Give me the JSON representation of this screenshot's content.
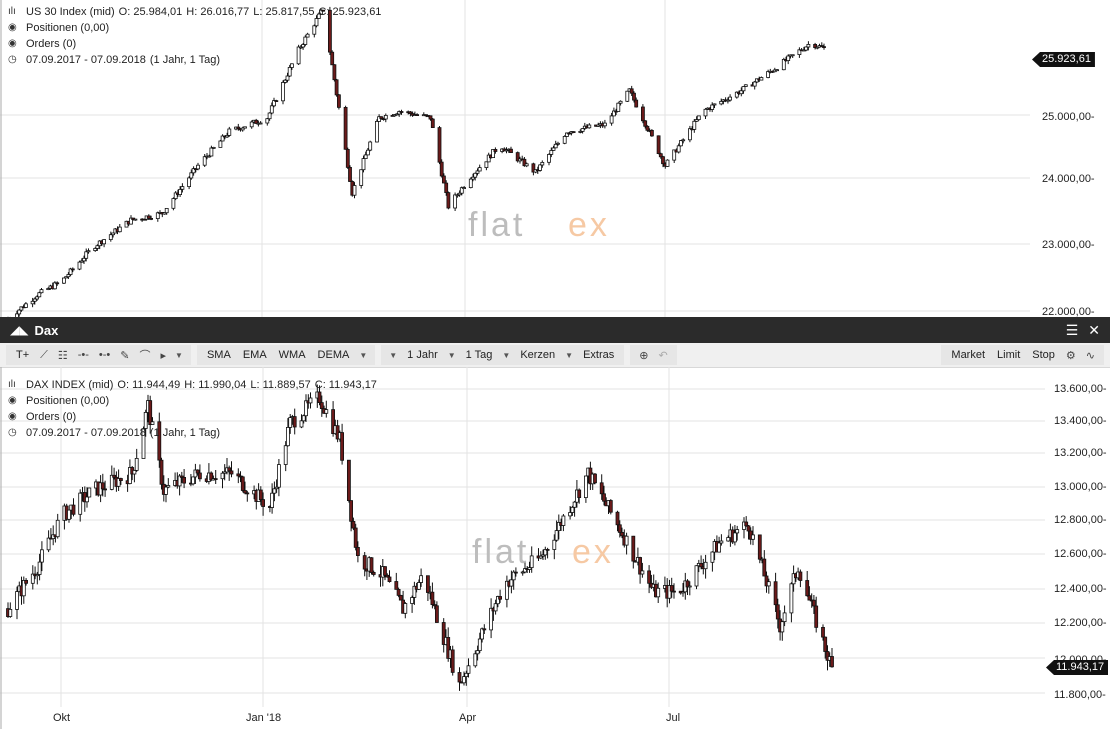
{
  "top_panel": {
    "header": {
      "name": "US 30 Index (mid)",
      "open": "O: 25.984,01",
      "high": "H: 26.016,77",
      "low": "L: 25.817,55",
      "close": "C: 25.923,61"
    },
    "positions": "Positionen (0,00)",
    "orders": "Orders (0)",
    "period": "07.09.2017 - 07.09.2018",
    "period_detail": "(1 Jahr, 1 Tag)",
    "current_price": "25.923,61",
    "watermark_left": "flat",
    "watermark_right": "ex",
    "y_ticks": [
      "22.000,00-",
      "23.000,00-",
      "24.000,00-",
      "25.000,00-"
    ]
  },
  "window": {
    "title": "Dax"
  },
  "toolbar": {
    "text_tool": "T+",
    "indicators": [
      "SMA",
      "EMA",
      "WMA",
      "DEMA"
    ],
    "period_select": "1 Jahr",
    "interval_select": "1 Tag",
    "chart_type_select": "Kerzen",
    "extras": "Extras",
    "order_buttons": [
      "Market",
      "Limit",
      "Stop"
    ]
  },
  "bottom_panel": {
    "header": {
      "name": "DAX INDEX (mid)",
      "open": "O: 11.944,49",
      "high": "H: 11.990,04",
      "low": "L: 11.889,57",
      "close": "C: 11.943,17"
    },
    "positions": "Positionen (0,00)",
    "orders": "Orders (0)",
    "period": "07.09.2017 - 07.09.2018",
    "period_detail": "(1 Jahr, 1 Tag)",
    "current_price": "11.943,17",
    "watermark_left": "flat",
    "watermark_right": "ex",
    "y_ticks": [
      "11.800,00-",
      "12.000,00-",
      "12.200,00-",
      "12.400,00-",
      "12.600,00-",
      "12.800,00-",
      "13.000,00-",
      "13.200,00-",
      "13.400,00-",
      "13.600,00-"
    ],
    "x_ticks": [
      "Okt",
      "Jan '18",
      "Apr",
      "Jul"
    ]
  },
  "colors": {
    "bullish": "#ffffff",
    "bearish": "#6b1a1a",
    "wick": "#111111",
    "watermark_gray": "#bdbdbd",
    "watermark_orange": "#f6c9a4"
  },
  "chart_data": [
    {
      "type": "line",
      "title": "US 30 Index (mid)",
      "x_range": [
        "2017-09-07",
        "2018-09-07"
      ],
      "ylim": [
        21800,
        26600
      ],
      "x": [
        "2017-09-07",
        "2017-09-20",
        "2017-10-01",
        "2017-10-15",
        "2017-11-01",
        "2017-11-15",
        "2017-12-01",
        "2017-12-15",
        "2018-01-01",
        "2018-01-15",
        "2018-01-26",
        "2018-02-08",
        "2018-02-20",
        "2018-03-01",
        "2018-03-15",
        "2018-03-23",
        "2018-04-01",
        "2018-04-15",
        "2018-05-01",
        "2018-05-15",
        "2018-06-01",
        "2018-06-12",
        "2018-06-28",
        "2018-07-15",
        "2018-08-01",
        "2018-08-15",
        "2018-09-01",
        "2018-09-07"
      ],
      "y": [
        21950,
        22300,
        22500,
        23000,
        23400,
        23500,
        24200,
        24700,
        24900,
        25900,
        26500,
        23800,
        24900,
        25000,
        24900,
        23600,
        24000,
        24500,
        24100,
        24700,
        24800,
        25300,
        24200,
        25000,
        25300,
        25600,
        26000,
        25920
      ]
    },
    {
      "type": "line",
      "title": "DAX INDEX (mid)",
      "x_range": [
        "2017-09-07",
        "2018-09-07"
      ],
      "x_ticks": [
        "Okt",
        "Jan '18",
        "Apr",
        "Jul"
      ],
      "ylim": [
        11700,
        13700
      ],
      "x": [
        "2017-09-07",
        "2017-09-20",
        "2017-10-01",
        "2017-10-15",
        "2017-11-01",
        "2017-11-08",
        "2017-11-15",
        "2017-12-01",
        "2017-12-15",
        "2018-01-01",
        "2018-01-10",
        "2018-01-23",
        "2018-02-01",
        "2018-02-09",
        "2018-02-20",
        "2018-03-01",
        "2018-03-10",
        "2018-03-26",
        "2018-04-15",
        "2018-05-01",
        "2018-05-22",
        "2018-06-06",
        "2018-06-20",
        "2018-07-01",
        "2018-07-20",
        "2018-08-01",
        "2018-08-15",
        "2018-08-23",
        "2018-09-07"
      ],
      "y": [
        12300,
        12550,
        12850,
        13000,
        13100,
        13500,
        13000,
        13100,
        13100,
        12900,
        13400,
        13550,
        13300,
        12600,
        12500,
        12300,
        12500,
        11850,
        12450,
        12600,
        13100,
        12750,
        12400,
        12400,
        12700,
        12800,
        12200,
        12550,
        11943
      ]
    }
  ]
}
